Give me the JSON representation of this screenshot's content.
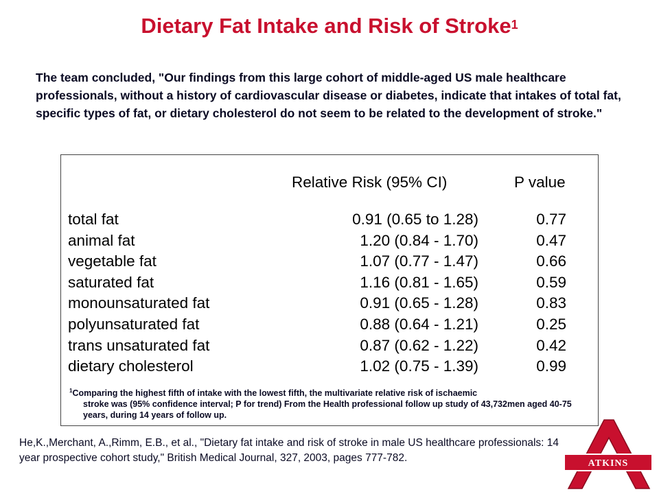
{
  "title": "Dietary Fat Intake and Risk of Stroke",
  "title_superscript": "1",
  "quote": "The team concluded, \"Our findings from this large cohort of middle-aged US male healthcare professionals, without a history of cardiovascular disease or diabetes, indicate that intakes of total fat, specific types of fat, or dietary cholesterol do not seem to be related to the development of stroke.\"",
  "table": {
    "header_rr": "Relative Risk (95% CI)",
    "header_p": "P value",
    "rows": [
      {
        "name": "total fat",
        "rr": "0.91 (0.65 to 1.28)",
        "p": "0.77"
      },
      {
        "name": "animal fat",
        "rr": "1.20 (0.84 - 1.70)",
        "p": "0.47"
      },
      {
        "name": "vegetable fat",
        "rr": "1.07 (0.77 - 1.47)",
        "p": "0.66"
      },
      {
        "name": "saturated fat",
        "rr": "1.16 (0.81 - 1.65)",
        "p": "0.59"
      },
      {
        "name": "monounsaturated fat",
        "rr": "0.91 (0.65 - 1.28)",
        "p": "0.83"
      },
      {
        "name": "polyunsaturated fat",
        "rr": "0.88 (0.64 - 1.21)",
        "p": "0.25"
      },
      {
        "name": "trans unsaturated fat",
        "rr": "0.87 (0.62 - 1.22)",
        "p": "0.42"
      },
      {
        "name": "dietary cholesterol",
        "rr": "1.02 (0.75 - 1.39)",
        "p": "0.99"
      }
    ]
  },
  "footnote": {
    "marker": "1",
    "line1": "Comparing the highest fifth of intake with the lowest fifth, the multivariate relative risk of ischaemic",
    "rest": "stroke was (95% confidence interval; P for trend) From the Health professional follow up study of 43,732men aged 40-75 years, during 14 years of follow up."
  },
  "reference": "He,K.,Merchant, A.,Rimm, E.B., et al., \"Dietary fat intake and risk of stroke in male US healthcare professionals: 14 year prospective cohort study,\" British Medical Journal, 327, 2003, pages 777-782.",
  "logo": {
    "text": "ATKINS",
    "icon": "atkins-a-logo-icon"
  },
  "colors": {
    "title": "#c8102e",
    "text": "#0a0a23",
    "logo_red": "#c8102e"
  }
}
